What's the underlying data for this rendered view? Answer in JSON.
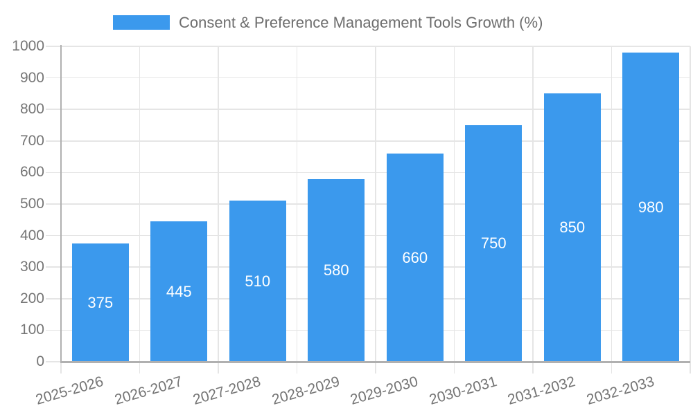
{
  "chart_data": {
    "type": "bar",
    "title": "Consent & Preference Management Tools Growth (%)",
    "categories": [
      "2025-2026",
      "2026-2027",
      "2027-2028",
      "2028-2029",
      "2029-2030",
      "2030-2031",
      "2031-2032",
      "2032-2033"
    ],
    "values": [
      375,
      445,
      510,
      580,
      660,
      750,
      850,
      980
    ],
    "series": [
      {
        "name": "Consent & Preference Management Tools Growth (%)",
        "values": [
          375,
          445,
          510,
          580,
          660,
          750,
          850,
          980
        ]
      }
    ],
    "xlabel": "",
    "ylabel": "",
    "ylim": [
      0,
      1000
    ],
    "ytick_step": 100,
    "grid": true,
    "legend_position": "top",
    "x_label_rotation_deg": -16,
    "value_labels": "inside-center"
  },
  "colors": {
    "bar": "#3b99ed",
    "grid": "#e5e5e5",
    "axis": "#b0b0b0",
    "tick_text": "#757575",
    "title_text": "#6e6e6e",
    "value_label_text": "#ffffff",
    "background": "#ffffff"
  }
}
